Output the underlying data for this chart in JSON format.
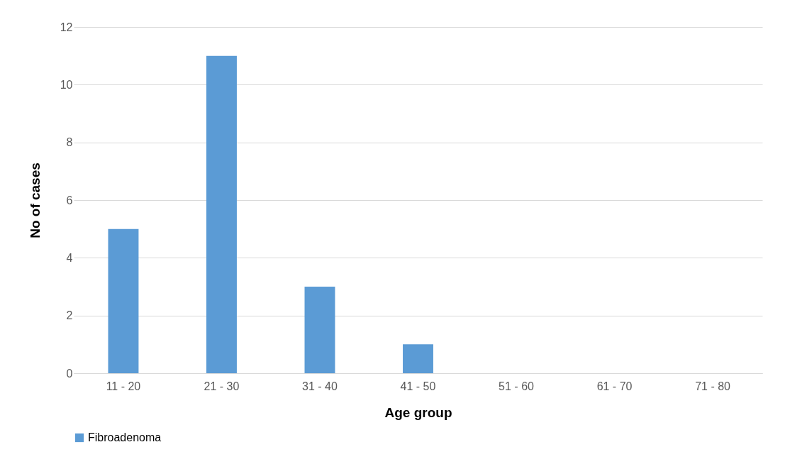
{
  "chart_data": {
    "type": "bar",
    "xlabel": "Age group",
    "ylabel": "No of cases",
    "categories": [
      "11 - 20",
      "21 - 30",
      "31 - 40",
      "41 - 50",
      "51 - 60",
      "61 - 70",
      "71 - 80"
    ],
    "series": [
      {
        "name": "Fibroadenoma",
        "color": "#5b9bd5",
        "values": [
          5,
          11,
          3,
          1,
          0,
          0,
          0
        ]
      }
    ],
    "ylim": [
      0,
      12
    ],
    "yticks": [
      0,
      2,
      4,
      6,
      8,
      10,
      12
    ],
    "grid": "y",
    "legend": "bottom"
  }
}
